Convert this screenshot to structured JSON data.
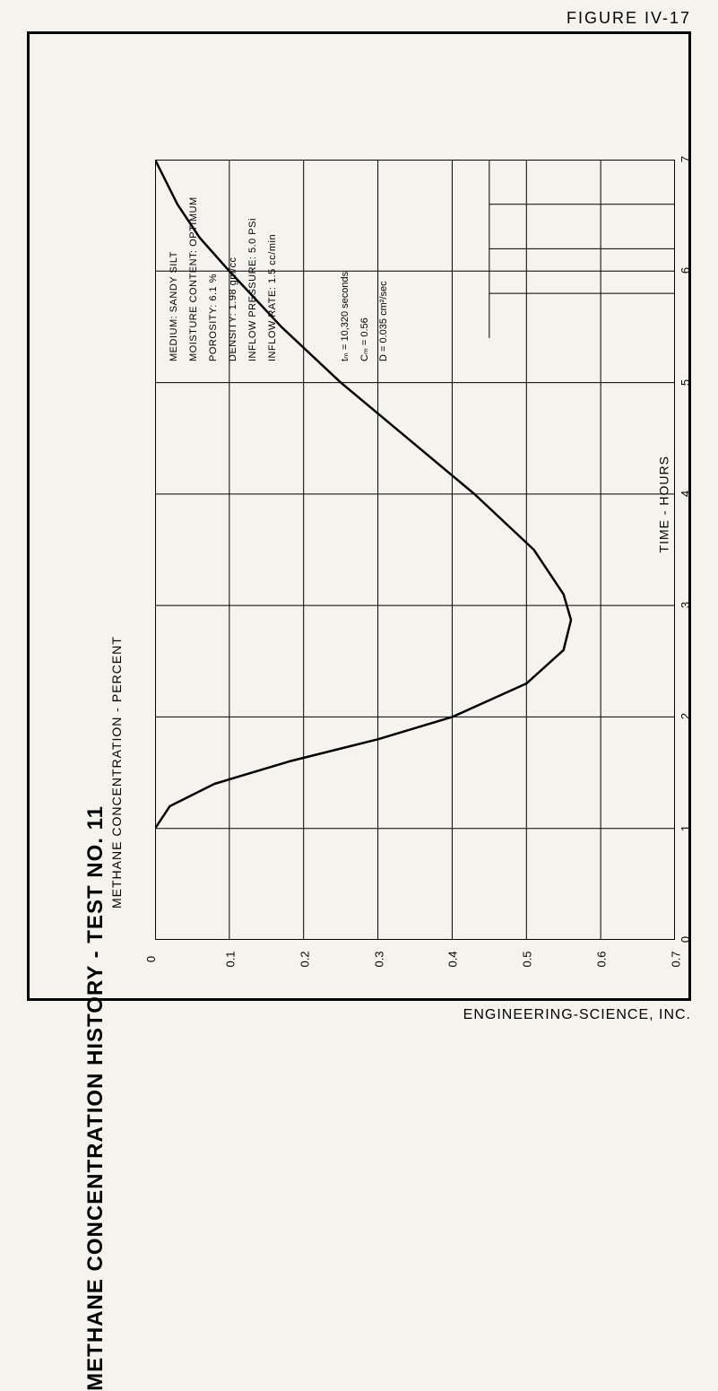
{
  "figure_label": "FIGURE IV-17",
  "footer": "ENGINEERING-SCIENCE, INC.",
  "title": "METHANE CONCENTRATION HISTORY - TEST NO. 11",
  "y_axis_label": "METHANE CONCENTRATION - PERCENT",
  "x_axis_label": "TIME - HOURS",
  "parameters": {
    "p1": "MEDIUM: SANDY SILT",
    "p2": "MOISTURE CONTENT: OPTIMUM",
    "p3": "POROSITY: 6.1 %",
    "p4": "DENSITY: 1.98 gm/cc",
    "p5": "INFLOW PRESSURE: 5.0 PSi",
    "p6": "INFLOW RATE: 1.5 cc/min"
  },
  "values": {
    "v1": "tₘ = 10,320 seconds",
    "v2": "Cₘ = 0.56",
    "v3": "D = 0.035 cm²/sec"
  },
  "chart": {
    "type": "line",
    "xlim": [
      0,
      7
    ],
    "ylim": [
      0,
      0.7
    ],
    "xticks": [
      0,
      1,
      2,
      3,
      4,
      5,
      6,
      7
    ],
    "yticks": [
      0,
      0.1,
      0.2,
      0.3,
      0.4,
      0.5,
      0.6,
      0.7
    ],
    "ytick_labels": [
      "0",
      "0.1",
      "0.2",
      "0.3",
      "0.4",
      "0.5",
      "0.6",
      "0.7"
    ],
    "grid_color": "#000000",
    "background_color": "#f5f3ee",
    "line_color": "#000000",
    "line_width": 2.5,
    "border_width": 2,
    "curve_points": [
      [
        1.0,
        0.0
      ],
      [
        1.2,
        0.02
      ],
      [
        1.4,
        0.08
      ],
      [
        1.6,
        0.18
      ],
      [
        1.8,
        0.3
      ],
      [
        2.0,
        0.4
      ],
      [
        2.3,
        0.5
      ],
      [
        2.6,
        0.55
      ],
      [
        2.87,
        0.56
      ],
      [
        3.1,
        0.55
      ],
      [
        3.5,
        0.51
      ],
      [
        4.0,
        0.43
      ],
      [
        4.5,
        0.34
      ],
      [
        5.0,
        0.25
      ],
      [
        5.5,
        0.17
      ],
      [
        6.0,
        0.1
      ],
      [
        6.3,
        0.06
      ],
      [
        6.6,
        0.03
      ],
      [
        7.0,
        0.0
      ]
    ],
    "info_box": {
      "x_range": [
        5.4,
        7.0
      ],
      "y_subdivisions": 4
    }
  }
}
